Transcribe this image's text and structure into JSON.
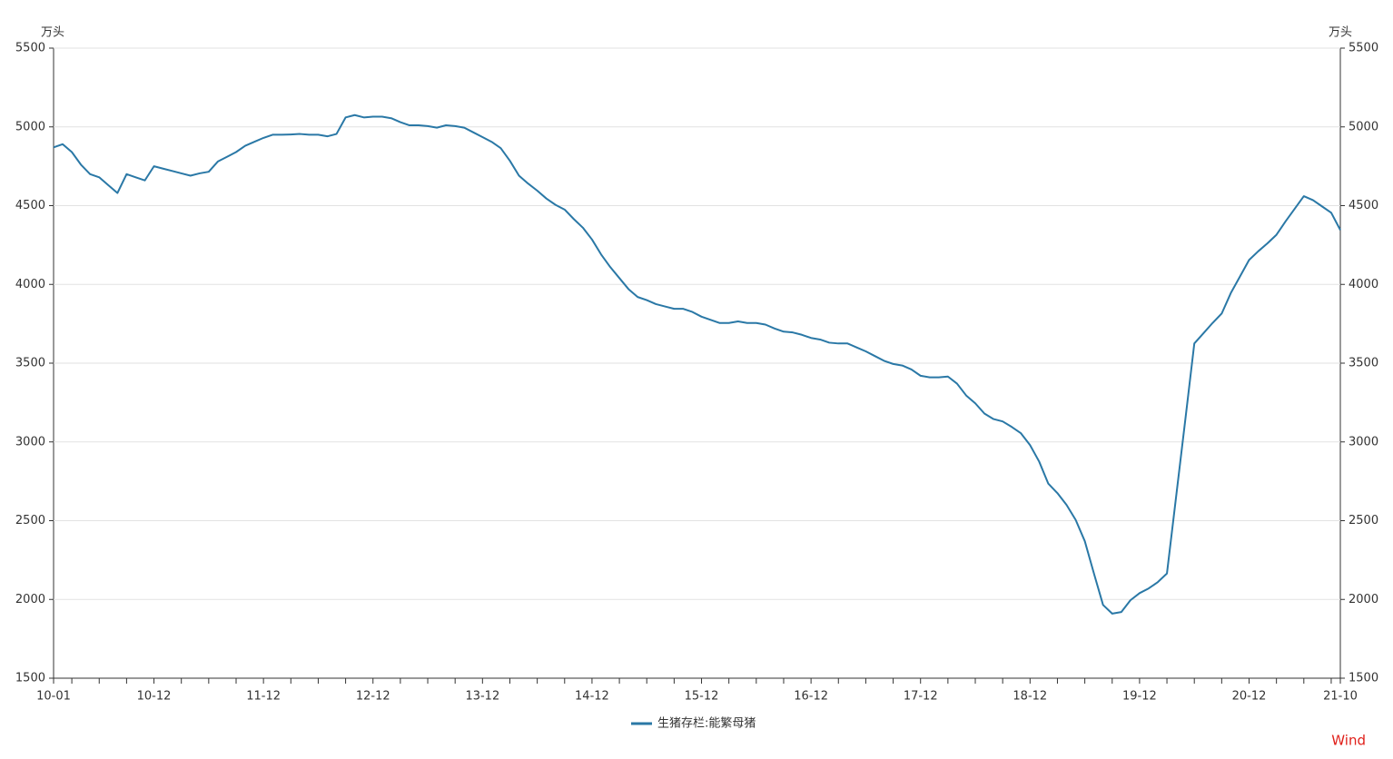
{
  "chart_data": {
    "type": "line",
    "y_unit": "万头",
    "y2_unit": "万头",
    "source": "Wind",
    "categories": [
      "10-01",
      null,
      null,
      null,
      null,
      null,
      null,
      null,
      null,
      null,
      null,
      "10-12",
      null,
      null,
      null,
      null,
      null,
      null,
      null,
      null,
      null,
      null,
      null,
      "11-12",
      null,
      null,
      null,
      null,
      null,
      null,
      null,
      null,
      null,
      null,
      null,
      "12-12",
      null,
      null,
      null,
      null,
      null,
      null,
      null,
      null,
      null,
      null,
      null,
      "13-12",
      null,
      null,
      null,
      null,
      null,
      null,
      null,
      null,
      null,
      null,
      null,
      "14-12",
      null,
      null,
      null,
      null,
      null,
      null,
      null,
      null,
      null,
      null,
      null,
      "15-12",
      null,
      null,
      null,
      null,
      null,
      null,
      null,
      null,
      null,
      null,
      null,
      "16-12",
      null,
      null,
      null,
      null,
      null,
      null,
      null,
      null,
      null,
      null,
      null,
      "17-12",
      null,
      null,
      null,
      null,
      null,
      null,
      null,
      null,
      null,
      null,
      null,
      "18-12",
      null,
      null,
      null,
      null,
      null,
      null,
      null,
      null,
      null,
      null,
      null,
      "19-12",
      null,
      null,
      null,
      null,
      null,
      null,
      null,
      null,
      null,
      null,
      null,
      "20-12",
      null,
      null,
      null,
      null,
      null,
      null,
      null,
      null,
      null,
      "21-10"
    ],
    "series": [
      {
        "name": "生猪存栏:能繁母猪",
        "color": "#2a78a6",
        "values": [
          4870,
          4890,
          4840,
          4760,
          4700,
          4680,
          4630,
          4580,
          4700,
          4680,
          4660,
          4750,
          4735,
          4720,
          4705,
          4690,
          4705,
          4715,
          4780,
          4810,
          4840,
          4880,
          4905,
          4930,
          4950,
          4950,
          4952,
          4955,
          4950,
          4950,
          4940,
          4955,
          5060,
          5075,
          5060,
          5065,
          5065,
          5055,
          5030,
          5010,
          5010,
          5005,
          4995,
          5010,
          5005,
          4995,
          4965,
          4935,
          4905,
          4865,
          4785,
          4690,
          4640,
          4595,
          4545,
          4505,
          4475,
          4415,
          4360,
          4285,
          4190,
          4110,
          4040,
          3970,
          3920,
          3900,
          3875,
          3860,
          3845,
          3845,
          3825,
          3795,
          3775,
          3755,
          3755,
          3765,
          3755,
          3755,
          3745,
          3720,
          3700,
          3695,
          3680,
          3660,
          3650,
          3630,
          3625,
          3625,
          3600,
          3575,
          3545,
          3515,
          3495,
          3485,
          3460,
          3420,
          3410,
          3410,
          3415,
          3370,
          3295,
          3245,
          3180,
          3145,
          3130,
          3095,
          3055,
          2980,
          2875,
          2735,
          2675,
          2600,
          2505,
          2370,
          2165,
          1965,
          1910,
          1920,
          1995,
          2040,
          2070,
          2110,
          2165,
          2650,
          3135,
          3625,
          3690,
          3755,
          3815,
          3945,
          4050,
          4155,
          4210,
          4260,
          4315,
          4400,
          4480,
          4560,
          4535,
          4495,
          4455,
          4345
        ]
      }
    ],
    "ylim": [
      1500,
      5500
    ],
    "yticks": [
      1500,
      2000,
      2500,
      3000,
      3500,
      4000,
      4500,
      5000,
      5500
    ],
    "y2lim": [
      1500,
      5500
    ],
    "y2ticks": [
      1500,
      2000,
      2500,
      3000,
      3500,
      4000,
      4500,
      5000,
      5500
    ],
    "grid": true
  }
}
